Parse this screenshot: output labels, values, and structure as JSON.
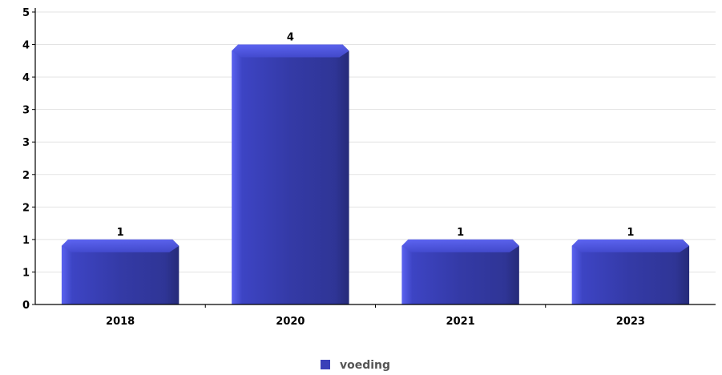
{
  "chart_data": {
    "type": "bar",
    "categories": [
      "2018",
      "2020",
      "2021",
      "2023"
    ],
    "series": [
      {
        "name": "voeding",
        "values": [
          1,
          4,
          1,
          1
        ]
      }
    ],
    "ylim": [
      0,
      4.5
    ],
    "y_tick_labels": [
      "0",
      "1",
      "1",
      "2",
      "2",
      "3",
      "3",
      "4",
      "4",
      "5"
    ],
    "grid": true,
    "legend_position": "bottom-center",
    "bar_color": "#3a40b8"
  }
}
